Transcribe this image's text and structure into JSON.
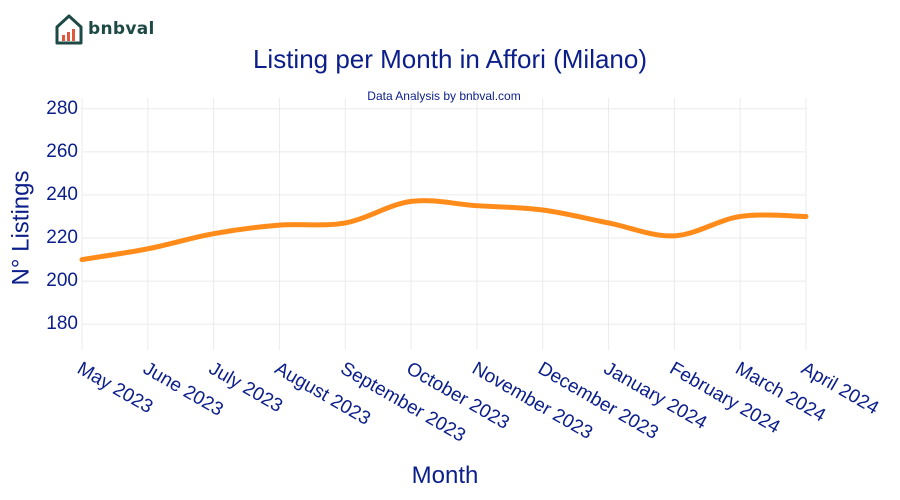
{
  "logo": {
    "text": "bnbval"
  },
  "chart_data": {
    "type": "line",
    "title": "Listing per Month in Affori (Milano)",
    "subtitle": "Data Analysis by bnbval.com",
    "xlabel": "Month",
    "ylabel": "N° Listings",
    "categories": [
      "May 2023",
      "June 2023",
      "July 2023",
      "August 2023",
      "September 2023",
      "October 2023",
      "November 2023",
      "December 2023",
      "January 2024",
      "February 2024",
      "March 2024",
      "April 2024"
    ],
    "series": [
      {
        "values": [
          210,
          215,
          222,
          226,
          227,
          237,
          235,
          233,
          227,
          221,
          230,
          230
        ]
      }
    ],
    "yticks": [
      180,
      200,
      220,
      240,
      260,
      280
    ],
    "ylim": [
      168,
      285
    ],
    "grid": true,
    "line_color": "#ff8c1a"
  }
}
